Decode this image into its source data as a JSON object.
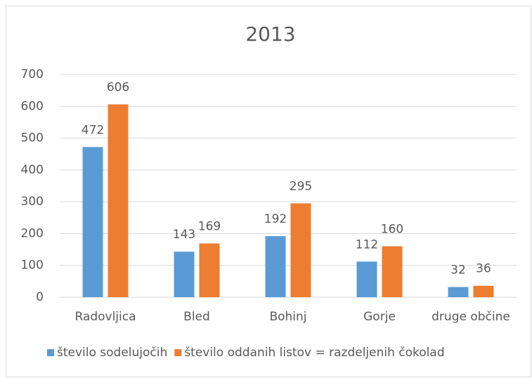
{
  "chart_data": {
    "type": "bar",
    "title": "2013",
    "categories": [
      "Radovljica",
      "Bled",
      "Bohinj",
      "Gorje",
      "druge občine"
    ],
    "series": [
      {
        "name": "število sodelujočih",
        "color": "#5b9bd5",
        "values": [
          472,
          143,
          192,
          112,
          32
        ]
      },
      {
        "name": "število oddanih listov = razdeljenih čokolad",
        "color": "#ed7d31",
        "values": [
          606,
          169,
          295,
          160,
          36
        ]
      }
    ],
    "ylim": [
      0,
      700
    ],
    "yticks": [
      0,
      100,
      200,
      300,
      400,
      500,
      600,
      700
    ],
    "grid": true,
    "legend": "bottom"
  }
}
